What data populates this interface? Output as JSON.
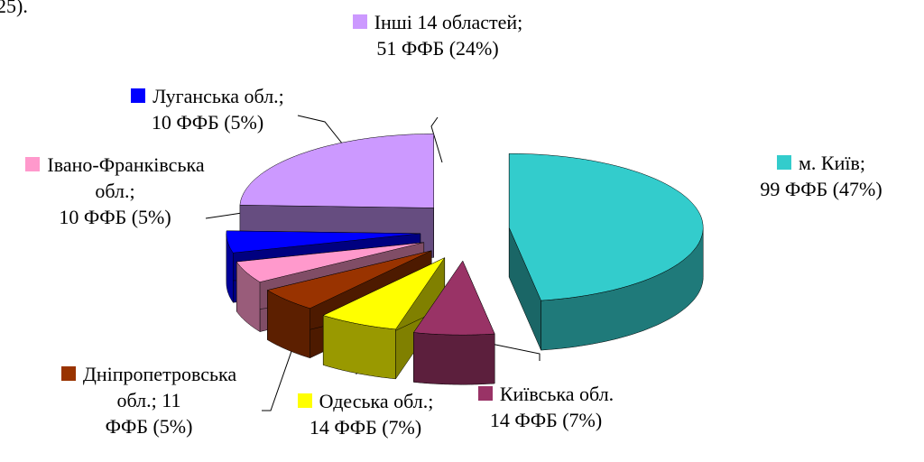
{
  "chart_data": {
    "type": "pie3d",
    "annotation": "25).",
    "categories": [
      "м. Київ;",
      "Київська обл.",
      "Одеська обл.;",
      "Дніпропетровська обл.; 11",
      "Івано-Франківська обл.;",
      "Луганська обл.;",
      "Інші 14 областей;"
    ],
    "values": [
      99,
      14,
      14,
      11,
      10,
      10,
      51
    ],
    "value_labels": [
      "99 ФФБ (47%)",
      "14 ФФБ (7%)",
      "14 ФФБ (7%)",
      "ФФБ (5%)",
      "10 ФФБ (5%)",
      "10 ФФБ (5%)",
      "51 ФФБ (24%)"
    ],
    "colors": [
      "#33cccc",
      "#993366",
      "#ffff00",
      "#993300",
      "#ff99cc",
      "#0000ff",
      "#cc99ff"
    ]
  }
}
